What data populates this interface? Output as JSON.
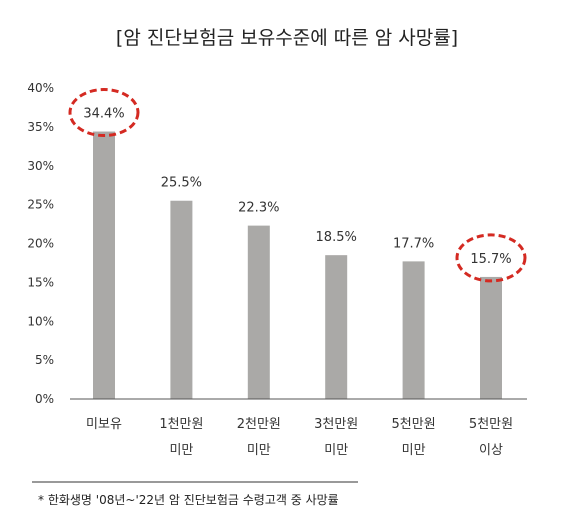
{
  "chart_data": {
    "type": "bar",
    "title": "[암 진단보험금 보유수준에 따른 암 사망률]",
    "categories": [
      [
        "미보유"
      ],
      [
        "1천만원",
        "미만"
      ],
      [
        "2천만원",
        "미만"
      ],
      [
        "3천만원",
        "미만"
      ],
      [
        "5천만원",
        "미만"
      ],
      [
        "5천만원",
        "이상"
      ]
    ],
    "values": [
      34.4,
      25.5,
      22.3,
      18.5,
      17.7,
      15.7
    ],
    "data_labels": [
      "34.4%",
      "25.5%",
      "22.3%",
      "18.5%",
      "17.7%",
      "15.7%"
    ],
    "highlighted": [
      0,
      5
    ],
    "ylim": [
      0,
      40
    ],
    "yticks": [
      "0%",
      "5%",
      "10%",
      "15%",
      "20%",
      "25%",
      "30%",
      "35%",
      "40%"
    ],
    "xlabel": "",
    "ylabel": "",
    "grid": false,
    "colors": {
      "bar": "#aaa9a7",
      "highlight_circle": "#d42a22",
      "axis": "#555555"
    }
  },
  "footnote": "* 한화생명 '08년~'22년 암 진단보험금 수령고객 중 사망률"
}
